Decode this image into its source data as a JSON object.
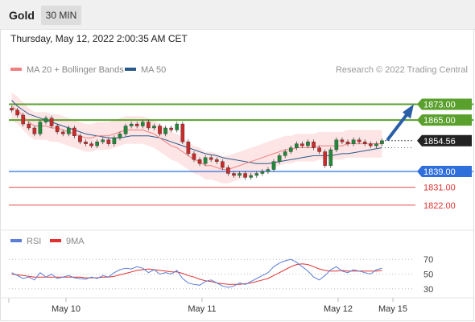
{
  "header": {
    "symbol": "Gold",
    "timeframe": "30 MIN"
  },
  "timestamp": "Thursday, May 12, 2022 2:00:35 AM CET",
  "attribution": "Research © 2022 Trading Central",
  "colors": {
    "ma20": "#f08080",
    "ma50": "#2a5a8c",
    "bollinger_fill": "#fde0e0",
    "resistance": "#5aa02c",
    "support": "#2f6fdc",
    "target_red": "#e03030",
    "candle_up": "#1f8a3a",
    "candle_down": "#cc2a2a",
    "rsi": "#5b7fd6",
    "rsi_ma": "#e03030",
    "arrow": "#2a5fa8"
  },
  "chart_data": [
    {
      "type": "candlestick",
      "ylim": [
        1815,
        1885
      ],
      "legend": [
        "MA 20 + Bollinger Bands",
        "MA 50"
      ],
      "x_ticks": [
        "May 10",
        "May 11",
        "May 12",
        "May 15"
      ],
      "levels": [
        {
          "label": "1873.00",
          "value": 1873.0,
          "kind": "resistance"
        },
        {
          "label": "1865.00",
          "value": 1865.0,
          "kind": "resistance"
        },
        {
          "label": "1854.56",
          "value": 1854.56,
          "kind": "last"
        },
        {
          "label": "1839.00",
          "value": 1839.0,
          "kind": "support"
        },
        {
          "label": "1831.00",
          "value": 1831.0,
          "kind": "target"
        },
        {
          "label": "1822.00",
          "value": 1822.0,
          "kind": "target"
        }
      ],
      "close_series": [
        1870,
        1867.5,
        1863,
        1861,
        1858,
        1864,
        1866,
        1862,
        1859,
        1858,
        1861,
        1857,
        1854,
        1853,
        1852,
        1854,
        1855,
        1853,
        1856,
        1858,
        1862,
        1863,
        1862,
        1864,
        1861,
        1862,
        1858,
        1861,
        1860,
        1863,
        1854,
        1848,
        1845,
        1843,
        1846,
        1845,
        1844,
        1841,
        1838,
        1837,
        1838,
        1836,
        1837,
        1838,
        1839,
        1840,
        1844,
        1847,
        1849,
        1851,
        1853,
        1852,
        1854,
        1851,
        1849,
        1842,
        1850,
        1855,
        1854,
        1853,
        1855,
        1854,
        1853,
        1852,
        1853,
        1854.56
      ],
      "ma20_series": [
        1872,
        1870,
        1867,
        1864,
        1862,
        1862,
        1862,
        1861,
        1861,
        1860,
        1859,
        1858,
        1857,
        1856,
        1856,
        1857,
        1857,
        1857,
        1858,
        1859,
        1860,
        1860,
        1860,
        1860,
        1859,
        1858,
        1856,
        1854,
        1852,
        1851,
        1849,
        1847,
        1845,
        1844,
        1842,
        1842,
        1841,
        1840,
        1840,
        1841,
        1842,
        1843,
        1844,
        1845,
        1846,
        1847,
        1848,
        1849,
        1850,
        1850,
        1851,
        1851,
        1851,
        1851,
        1852,
        1852,
        1852,
        1852,
        1852,
        1853,
        1853,
        1853,
        1853,
        1853,
        1853,
        1853
      ],
      "ma50_series": [
        1875,
        1872,
        1870,
        1868,
        1867,
        1866,
        1865,
        1864,
        1863,
        1862,
        1861,
        1860,
        1859,
        1858,
        1857.5,
        1857,
        1856.5,
        1856,
        1856,
        1856,
        1856.5,
        1857,
        1857,
        1857,
        1857,
        1856.5,
        1856,
        1855,
        1854,
        1853,
        1852,
        1851,
        1850,
        1849,
        1848,
        1847.5,
        1847,
        1846,
        1845.5,
        1845,
        1844.5,
        1844,
        1843.5,
        1843,
        1843,
        1843,
        1843.5,
        1844,
        1844.5,
        1845,
        1845.5,
        1846,
        1846.5,
        1847,
        1847,
        1847,
        1847,
        1847.5,
        1848,
        1848,
        1848.5,
        1849,
        1849.5,
        1850,
        1850.5,
        1851
      ]
    },
    {
      "type": "line",
      "ylim": [
        20,
        80
      ],
      "legend": [
        "RSI",
        "9MA"
      ],
      "y_ticks": [
        70,
        50,
        30
      ],
      "rsi_series": [
        52,
        48,
        44,
        46,
        42,
        52,
        46,
        50,
        44,
        46,
        48,
        45,
        44,
        43,
        46,
        44,
        48,
        46,
        52,
        56,
        58,
        57,
        60,
        58,
        52,
        56,
        50,
        52,
        50,
        55,
        44,
        38,
        36,
        35,
        40,
        42,
        38,
        34,
        32,
        34,
        38,
        36,
        40,
        44,
        48,
        52,
        60,
        65,
        68,
        70,
        66,
        60,
        54,
        46,
        42,
        48,
        56,
        60,
        54,
        52,
        56,
        54,
        52,
        50,
        56,
        58
      ],
      "rsi_ma_series": [
        50,
        49,
        48,
        47,
        46,
        46,
        46,
        46,
        46,
        46,
        46,
        46,
        46,
        45,
        45,
        45,
        46,
        46,
        47,
        49,
        51,
        53,
        55,
        56,
        57,
        56,
        55,
        54,
        53,
        53,
        51,
        48,
        46,
        43,
        41,
        40,
        38,
        37,
        36,
        36,
        36,
        37,
        38,
        40,
        42,
        44,
        48,
        52,
        56,
        60,
        63,
        64,
        63,
        60,
        57,
        55,
        54,
        54,
        55,
        54,
        54,
        54,
        54,
        54,
        54,
        55
      ]
    }
  ]
}
